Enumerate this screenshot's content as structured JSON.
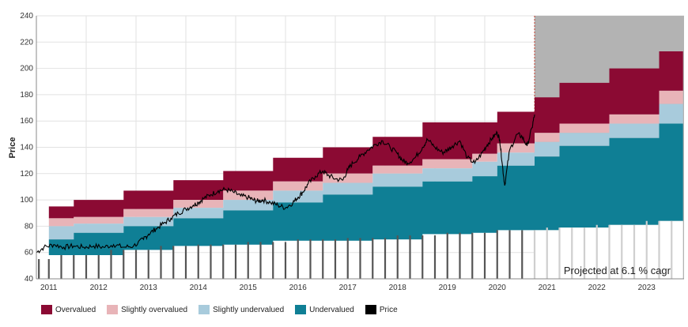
{
  "chart_data": {
    "type": "area",
    "ylabel": "Price",
    "ylim": [
      40,
      240
    ],
    "yticks": [
      40,
      60,
      80,
      100,
      120,
      140,
      160,
      180,
      200,
      220,
      240
    ],
    "xlim": [
      2010.75,
      2023.75
    ],
    "year_ticks": [
      "2011",
      "2012",
      "2013",
      "2014",
      "2015",
      "2016",
      "2017",
      "2018",
      "2019",
      "2020",
      "2021",
      "2022",
      "2023"
    ],
    "projection_start": 2020.75,
    "annotation": "Projected at 6.1 % cagr",
    "colors": {
      "overvalued": "#8b0a33",
      "slightly_overvalued": "#e8b4b8",
      "slightly_undervalued": "#a8cbdc",
      "undervalued": "#0f7f95",
      "price": "#000000",
      "projection_shade": "#b3b3b3"
    },
    "legend": [
      "Overvalued",
      "Slightly overvalued",
      "Slightly undervalued",
      "Undervalued",
      "Price"
    ],
    "fair_value_steps": [
      {
        "year": 2011,
        "base": 58,
        "b1": 70,
        "b2": 80,
        "b3": 86,
        "top": 95
      },
      {
        "year": 2011.5,
        "base": 58,
        "b1": 75,
        "b2": 82,
        "b3": 87,
        "top": 100
      },
      {
        "year": 2012.5,
        "base": 62,
        "b1": 80,
        "b2": 87,
        "b3": 93,
        "top": 107
      },
      {
        "year": 2013.5,
        "base": 65,
        "b1": 86,
        "b2": 94,
        "b3": 100,
        "top": 115
      },
      {
        "year": 2014.5,
        "base": 66,
        "b1": 92,
        "b2": 100,
        "b3": 107,
        "top": 122
      },
      {
        "year": 2015.5,
        "base": 69,
        "b1": 98,
        "b2": 107,
        "b3": 114,
        "top": 132
      },
      {
        "year": 2016.5,
        "base": 69,
        "b1": 104,
        "b2": 113,
        "b3": 120,
        "top": 140
      },
      {
        "year": 2017.5,
        "base": 70,
        "b1": 110,
        "b2": 120,
        "b3": 126,
        "top": 148
      },
      {
        "year": 2018.5,
        "base": 74,
        "b1": 114,
        "b2": 124,
        "b3": 131,
        "top": 159
      },
      {
        "year": 2019.5,
        "base": 75,
        "b1": 118,
        "b2": 129,
        "b3": 135,
        "top": 159
      },
      {
        "year": 2020.0,
        "base": 77,
        "b1": 126,
        "b2": 136,
        "b3": 143,
        "top": 167
      },
      {
        "year": 2020.75,
        "base": 77,
        "b1": 133,
        "b2": 144,
        "b3": 151,
        "top": 178
      },
      {
        "year": 2021.25,
        "base": 79,
        "b1": 141,
        "b2": 151,
        "b3": 158,
        "top": 189
      },
      {
        "year": 2022.25,
        "base": 81,
        "b1": 147,
        "b2": 158,
        "b3": 165,
        "top": 200
      },
      {
        "year": 2023.25,
        "base": 84,
        "b1": 158,
        "b2": 173,
        "b3": 183,
        "top": 213
      }
    ],
    "price_bars": {
      "x": [
        2010.8,
        2011.0,
        2011.25,
        2011.5,
        2011.75,
        2012.0,
        2012.25,
        2012.5,
        2012.75,
        2013.0,
        2013.25,
        2013.5,
        2013.75,
        2014.0,
        2014.25,
        2014.5,
        2014.75,
        2015.0,
        2015.25,
        2015.5,
        2015.75,
        2016.0,
        2016.25,
        2016.5,
        2016.75,
        2017.0,
        2017.25,
        2017.5,
        2017.75,
        2018.0,
        2018.25,
        2018.5,
        2018.75,
        2019.0,
        2019.25,
        2019.5,
        2019.75,
        2020.0,
        2020.25,
        2020.5,
        2020.75,
        2021.0,
        2021.25,
        2021.5,
        2021.75,
        2022.0,
        2022.25,
        2022.5,
        2022.75,
        2023.0,
        2023.25,
        2023.5
      ],
      "values": [
        55,
        55,
        58,
        58,
        58,
        58,
        62,
        62,
        62,
        62,
        65,
        65,
        65,
        66,
        66,
        66,
        66,
        68,
        68,
        68,
        68,
        70,
        70,
        70,
        70,
        71,
        71,
        71,
        71,
        73,
        73,
        73,
        73,
        75,
        75,
        75,
        75,
        77,
        77,
        77,
        77,
        79,
        79,
        79,
        79,
        81,
        81,
        81,
        81,
        84,
        84,
        84
      ],
      "projected_from": 2020.75
    },
    "price_series": {
      "x": [
        2010.75,
        2010.9,
        2011.1,
        2011.3,
        2011.5,
        2011.7,
        2011.9,
        2012.1,
        2012.3,
        2012.5,
        2012.7,
        2012.9,
        2013.0,
        2013.15,
        2013.3,
        2013.45,
        2013.6,
        2013.75,
        2013.9,
        2014.0,
        2014.1,
        2014.25,
        2014.4,
        2014.55,
        2014.7,
        2014.85,
        2015.0,
        2015.1,
        2015.2,
        2015.3,
        2015.45,
        2015.6,
        2015.75,
        2015.9,
        2016.0,
        2016.1,
        2016.2,
        2016.35,
        2016.5,
        2016.6,
        2016.75,
        2016.9,
        2017.0,
        2017.1,
        2017.25,
        2017.4,
        2017.55,
        2017.7,
        2017.85,
        2018.0,
        2018.1,
        2018.2,
        2018.35,
        2018.5,
        2018.6,
        2018.75,
        2018.9,
        2019.0,
        2019.1,
        2019.25,
        2019.4,
        2019.55,
        2019.7,
        2019.8,
        2019.9,
        2020.0,
        2020.05,
        2020.1,
        2020.15,
        2020.25,
        2020.4,
        2020.5,
        2020.6,
        2020.7,
        2020.75
      ],
      "y": [
        60,
        64,
        66,
        64,
        65,
        64,
        65,
        64,
        66,
        64,
        65,
        70,
        74,
        78,
        82,
        86,
        90,
        93,
        96,
        98,
        101,
        104,
        107,
        108,
        106,
        103,
        102,
        100,
        99,
        100,
        98,
        96,
        94,
        98,
        102,
        106,
        112,
        118,
        122,
        119,
        116,
        115,
        123,
        128,
        133,
        138,
        142,
        145,
        140,
        135,
        130,
        128,
        132,
        140,
        146,
        140,
        136,
        138,
        141,
        145,
        132,
        128,
        136,
        142,
        147,
        151,
        146,
        128,
        111,
        138,
        150,
        148,
        141,
        155,
        165
      ]
    }
  }
}
